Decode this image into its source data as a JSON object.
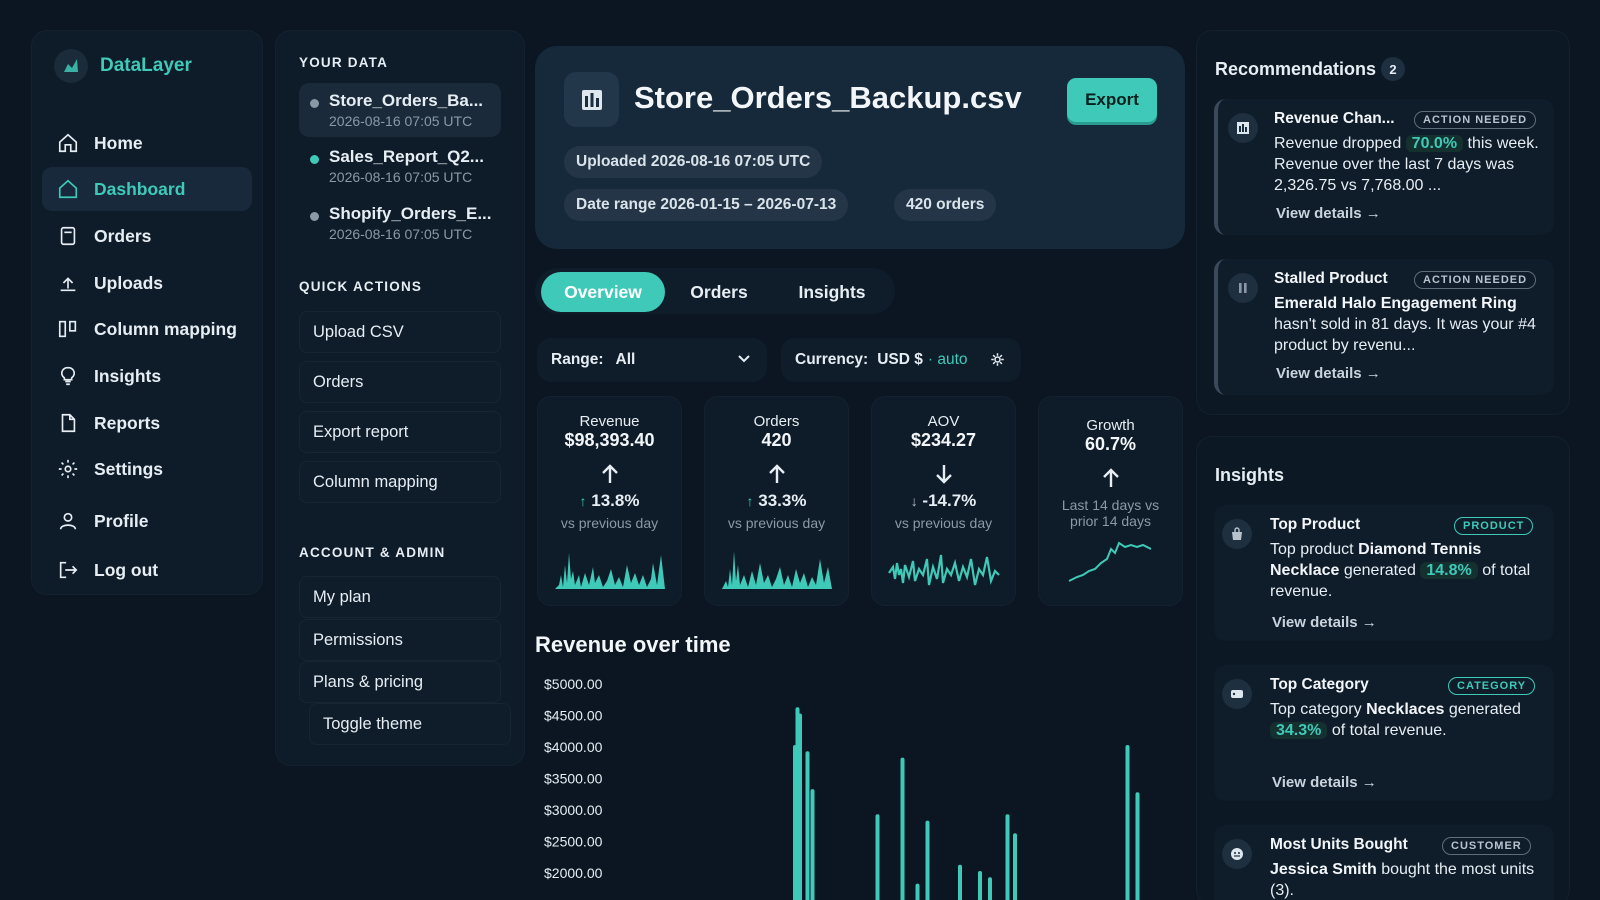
{
  "brand": {
    "name": "DataLayer",
    "icon": "logo-mark",
    "accent": "#3ec9b8"
  },
  "sidebar": {
    "items": [
      {
        "label": "Home",
        "icon": "home-icon"
      },
      {
        "label": "Dashboard",
        "icon": "home-icon",
        "active": true
      },
      {
        "label": "Orders",
        "icon": "document-icon"
      },
      {
        "label": "Uploads",
        "icon": "upload-icon"
      },
      {
        "label": "Column mapping",
        "icon": "columns-icon"
      },
      {
        "label": "Insights",
        "icon": "lightbulb-icon"
      },
      {
        "label": "Reports",
        "icon": "file-icon"
      },
      {
        "label": "Settings",
        "icon": "gear-icon"
      },
      {
        "label": "Profile",
        "icon": "user-icon"
      },
      {
        "label": "Log out",
        "icon": "logout-icon"
      }
    ]
  },
  "your_data": {
    "title": "YOUR DATA",
    "files": [
      {
        "name": "Store_Orders_Ba...",
        "date": "2026-08-16 07:05 UTC",
        "dot": "#8b98a6",
        "active": true
      },
      {
        "name": "Sales_Report_Q2...",
        "date": "2026-08-16 07:05 UTC",
        "dot": "#3ec9b8"
      },
      {
        "name": "Shopify_Orders_E...",
        "date": "2026-08-16 07:05 UTC",
        "dot": "#8b98a6"
      }
    ]
  },
  "quick_actions": {
    "title": "QUICK ACTIONS",
    "items": [
      "Upload CSV",
      "Orders",
      "Export report",
      "Column mapping"
    ]
  },
  "account": {
    "title": "ACCOUNT & ADMIN",
    "items": [
      "My plan",
      "Permissions",
      "Plans & pricing",
      "Toggle theme"
    ]
  },
  "hero": {
    "title": "Store_Orders_Backup.csv",
    "export_label": "Export",
    "uploaded": "Uploaded 2026-08-16 07:05 UTC",
    "date_range": "Date range 2026-01-15 – 2026-07-13",
    "orders": "420 orders"
  },
  "tabs": [
    "Overview",
    "Orders",
    "Insights"
  ],
  "filters": {
    "range_label": "Range:",
    "range_value": "All",
    "currency_label": "Currency:",
    "currency_value": "USD $",
    "currency_mode": "· auto"
  },
  "kpis": [
    {
      "label": "Revenue",
      "value": "$98,393.40",
      "direction": "up",
      "change": "13.8%",
      "sub": "vs previous day"
    },
    {
      "label": "Orders",
      "value": "420",
      "direction": "up",
      "change": "33.3%",
      "sub": "vs previous day"
    },
    {
      "label": "AOV",
      "value": "$234.27",
      "direction": "down",
      "change": "-14.7%",
      "sub": "vs previous day"
    },
    {
      "label": "Growth",
      "value": "60.7%",
      "direction": "up",
      "sub": "Last 14 days vs prior 14 days"
    }
  ],
  "revenue_chart": {
    "title": "Revenue over time"
  },
  "chart_data": {
    "type": "bar",
    "title": "Revenue over time",
    "y_ticks": [
      "$5000.00",
      "$4500.00",
      "$4000.00",
      "$3500.00",
      "$3000.00",
      "$2500.00",
      "$2000.00"
    ],
    "ylim": [
      2000,
      5000
    ],
    "x": [
      0.23,
      0.235,
      0.24,
      0.255,
      0.265,
      0.395,
      0.445,
      0.475,
      0.495,
      0.56,
      0.6,
      0.62,
      0.655,
      0.67,
      0.895,
      0.915
    ],
    "values": [
      4000,
      4600,
      4500,
      3900,
      3300,
      2900,
      3800,
      1800,
      2800,
      2100,
      2000,
      1900,
      2900,
      2600,
      4000,
      3250
    ],
    "grid": false,
    "color": "#3ec9b8"
  },
  "recommendations": {
    "title": "Recommendations",
    "count": "2",
    "items": [
      {
        "title": "Revenue Chan...",
        "tag": "ACTION NEEDED",
        "icon": "chart-icon",
        "pre": "Revenue dropped",
        "highlight": "70.0%",
        "post": "this week. Revenue over the last 7 days was 2,326.75 vs 7,768.00 ...",
        "link": "View details →"
      },
      {
        "title": "Stalled Product",
        "tag": "ACTION NEEDED",
        "icon": "pause-icon",
        "bold": "Emerald Halo Engagement Ring",
        "post": "hasn't sold in 81 days. It was your #4 product by revenu...",
        "link": "View details →"
      }
    ]
  },
  "insights": {
    "title": "Insights",
    "items": [
      {
        "title": "Top Product",
        "tag": "PRODUCT",
        "icon": "bag-icon",
        "pre": "Top product",
        "bold": "Diamond Tennis Necklace",
        "mid": "generated",
        "highlight": "14.8%",
        "post": "of total revenue.",
        "link": "View details →"
      },
      {
        "title": "Top Category",
        "tag": "CATEGORY",
        "icon": "tag-icon",
        "pre": "Top category",
        "bold": "Necklaces",
        "mid": "generated",
        "highlight": "34.3%",
        "post": "of total revenue.",
        "link": "View details →"
      },
      {
        "title": "Most Units Bought",
        "tag": "CUSTOMER",
        "icon": "customer-icon",
        "bold": "Jessica Smith",
        "post": "bought the most units (3)."
      }
    ]
  }
}
